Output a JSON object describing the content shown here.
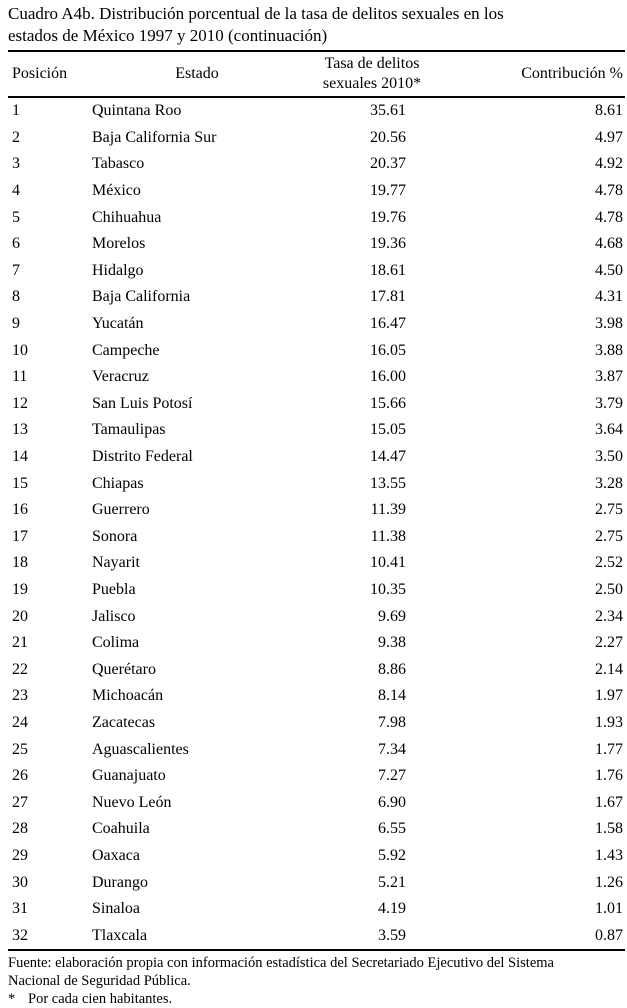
{
  "title_lines": [
    "Cuadro A4b. Distribución porcentual de la tasa de delitos sexuales en los",
    "estados de México 1997 y 2010 (continuación)"
  ],
  "table": {
    "columns": [
      "Posición",
      "Estado",
      "Tasa de delitos sexuales 2010*",
      "Contribución %"
    ],
    "rows": [
      {
        "posicion": "1",
        "estado": "Quintana Roo",
        "tasa": "35.61",
        "contribucion": "8.61"
      },
      {
        "posicion": "2",
        "estado": "Baja California Sur",
        "tasa": "20.56",
        "contribucion": "4.97"
      },
      {
        "posicion": "3",
        "estado": "Tabasco",
        "tasa": "20.37",
        "contribucion": "4.92"
      },
      {
        "posicion": "4",
        "estado": "México",
        "tasa": "19.77",
        "contribucion": "4.78"
      },
      {
        "posicion": "5",
        "estado": "Chihuahua",
        "tasa": "19.76",
        "contribucion": "4.78"
      },
      {
        "posicion": "6",
        "estado": "Morelos",
        "tasa": "19.36",
        "contribucion": "4.68"
      },
      {
        "posicion": "7",
        "estado": "Hidalgo",
        "tasa": "18.61",
        "contribucion": "4.50"
      },
      {
        "posicion": "8",
        "estado": "Baja California",
        "tasa": "17.81",
        "contribucion": "4.31"
      },
      {
        "posicion": "9",
        "estado": "Yucatán",
        "tasa": "16.47",
        "contribucion": "3.98"
      },
      {
        "posicion": "10",
        "estado": "Campeche",
        "tasa": "16.05",
        "contribucion": "3.88"
      },
      {
        "posicion": "11",
        "estado": "Veracruz",
        "tasa": "16.00",
        "contribucion": "3.87"
      },
      {
        "posicion": "12",
        "estado": "San Luis Potosí",
        "tasa": "15.66",
        "contribucion": "3.79"
      },
      {
        "posicion": "13",
        "estado": "Tamaulipas",
        "tasa": "15.05",
        "contribucion": "3.64"
      },
      {
        "posicion": "14",
        "estado": "Distrito Federal",
        "tasa": "14.47",
        "contribucion": "3.50"
      },
      {
        "posicion": "15",
        "estado": "Chiapas",
        "tasa": "13.55",
        "contribucion": "3.28"
      },
      {
        "posicion": "16",
        "estado": "Guerrero",
        "tasa": "11.39",
        "contribucion": "2.75"
      },
      {
        "posicion": "17",
        "estado": "Sonora",
        "tasa": "11.38",
        "contribucion": "2.75"
      },
      {
        "posicion": "18",
        "estado": "Nayarit",
        "tasa": "10.41",
        "contribucion": "2.52"
      },
      {
        "posicion": "19",
        "estado": "Puebla",
        "tasa": "10.35",
        "contribucion": "2.50"
      },
      {
        "posicion": "20",
        "estado": "Jalisco",
        "tasa": "9.69",
        "contribucion": "2.34"
      },
      {
        "posicion": "21",
        "estado": "Colima",
        "tasa": "9.38",
        "contribucion": "2.27"
      },
      {
        "posicion": "22",
        "estado": "Querétaro",
        "tasa": "8.86",
        "contribucion": "2.14"
      },
      {
        "posicion": "23",
        "estado": "Michoacán",
        "tasa": "8.14",
        "contribucion": "1.97"
      },
      {
        "posicion": "24",
        "estado": "Zacatecas",
        "tasa": "7.98",
        "contribucion": "1.93"
      },
      {
        "posicion": "25",
        "estado": "Aguascalientes",
        "tasa": "7.34",
        "contribucion": "1.77"
      },
      {
        "posicion": "26",
        "estado": "Guanajuato",
        "tasa": "7.27",
        "contribucion": "1.76"
      },
      {
        "posicion": "27",
        "estado": "Nuevo León",
        "tasa": "6.90",
        "contribucion": "1.67"
      },
      {
        "posicion": "28",
        "estado": "Coahuila",
        "tasa": "6.55",
        "contribucion": "1.58"
      },
      {
        "posicion": "29",
        "estado": "Oaxaca",
        "tasa": "5.92",
        "contribucion": "1.43"
      },
      {
        "posicion": "30",
        "estado": "Durango",
        "tasa": "5.21",
        "contribucion": "1.26"
      },
      {
        "posicion": "31",
        "estado": "Sinaloa",
        "tasa": "4.19",
        "contribucion": "1.01"
      },
      {
        "posicion": "32",
        "estado": "Tlaxcala",
        "tasa": "3.59",
        "contribucion": "0.87"
      }
    ]
  },
  "footer": {
    "fuente_lines": [
      "Fuente: elaboración propia con información estadística del Secretariado Ejecutivo del Sistema",
      "Nacional de Seguridad Pública."
    ],
    "nota_marker": "*",
    "nota_text": "Por cada cien habitantes."
  }
}
